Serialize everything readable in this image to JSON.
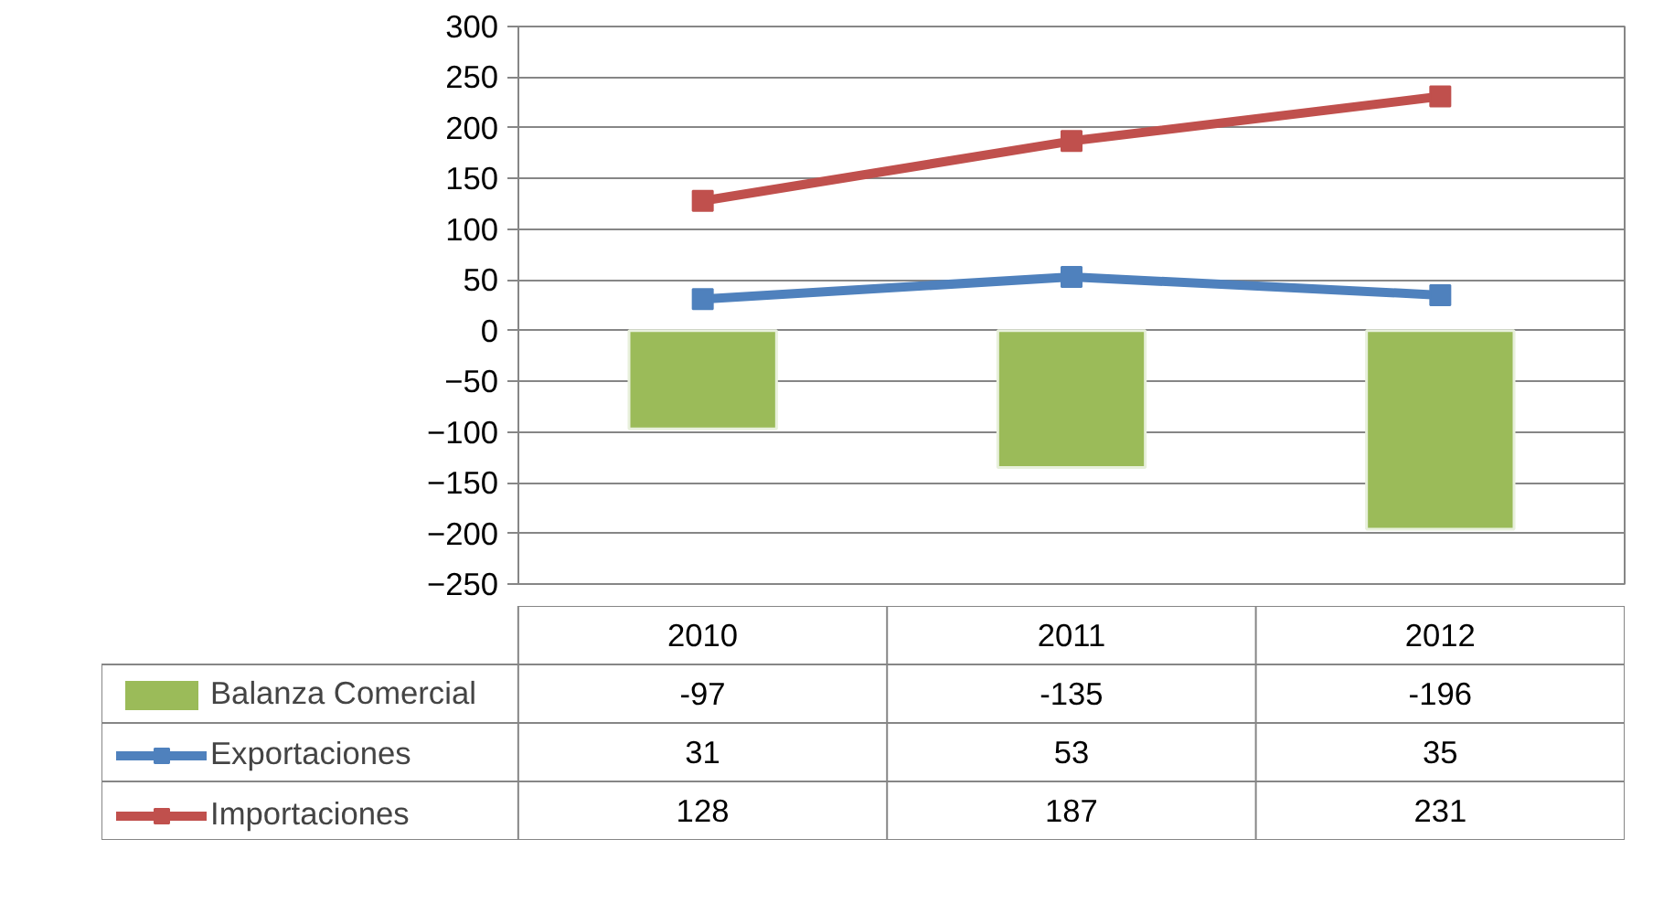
{
  "chart_data": {
    "type": "bar",
    "categories": [
      "2010",
      "2011",
      "2012"
    ],
    "series": [
      {
        "name": "Balanza Comercial",
        "color": "#9bbb59",
        "values": [
          -97,
          -135,
          -196
        ]
      },
      {
        "name": "Exportaciones",
        "type": "line",
        "color": "#4f81bd",
        "values": [
          31,
          53,
          35
        ]
      },
      {
        "name": "Importaciones",
        "type": "line",
        "color": "#c0504d",
        "values": [
          128,
          187,
          231
        ]
      }
    ],
    "ylim": [
      -250,
      300
    ],
    "yticks": [
      -250,
      -200,
      -150,
      -100,
      -50,
      0,
      50,
      100,
      150,
      200,
      250,
      300
    ],
    "grid": "y",
    "marker": "square",
    "data_labels": true,
    "legend": "bottom"
  }
}
